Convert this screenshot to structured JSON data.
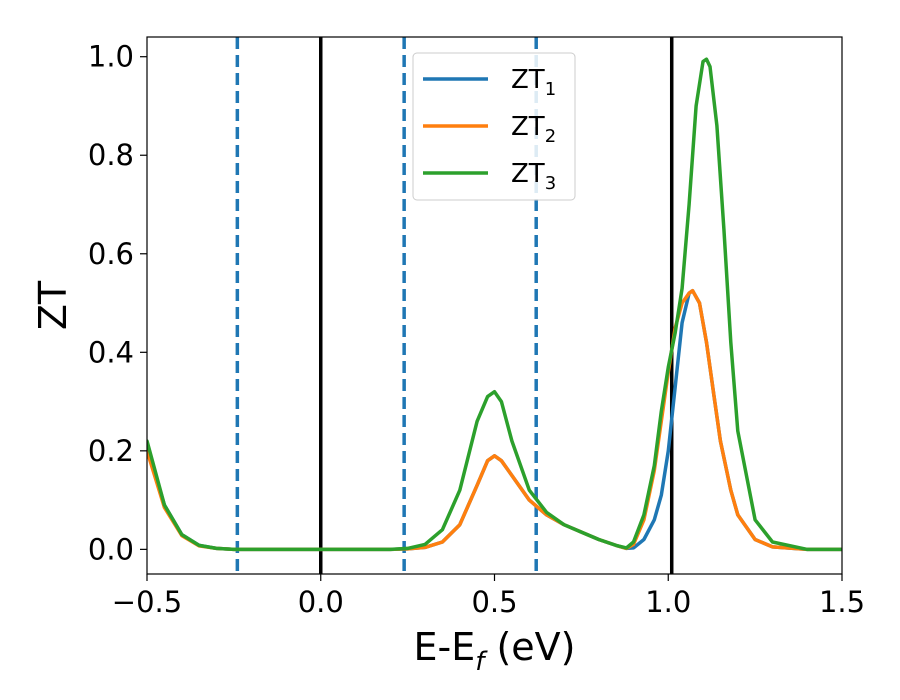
{
  "chart_data": {
    "type": "line",
    "xlabel": "E-E_f (eV)",
    "xlabel_main": "E-E",
    "xlabel_sub": "f",
    "xlabel_rest": " (eV)",
    "ylabel": "ZT",
    "xlim": [
      -0.5,
      1.5
    ],
    "ylim": [
      -0.05,
      1.04
    ],
    "grid": false,
    "legend_placement": "upper-center",
    "x_ticks": [
      -0.5,
      0.0,
      0.5,
      1.0,
      1.5
    ],
    "x_tick_labels": [
      "−0.5",
      "0.0",
      "0.5",
      "1.0",
      "1.5"
    ],
    "y_ticks": [
      0.0,
      0.2,
      0.4,
      0.6,
      0.8,
      1.0
    ],
    "y_tick_labels": [
      "0.0",
      "0.2",
      "0.4",
      "0.6",
      "0.8",
      "1.0"
    ],
    "vertical_lines": [
      {
        "x": -0.24,
        "style": "dashed",
        "color": "#1f77b4"
      },
      {
        "x": 0.0,
        "style": "solid",
        "color": "#000000"
      },
      {
        "x": 0.24,
        "style": "dashed",
        "color": "#1f77b4"
      },
      {
        "x": 0.62,
        "style": "dashed",
        "color": "#1f77b4"
      },
      {
        "x": 1.01,
        "style": "solid",
        "color": "#000000"
      }
    ],
    "series": [
      {
        "name": "ZT_1",
        "name_main": "ZT",
        "name_sub": "1",
        "color": "#1f77b4",
        "x": [
          -0.5,
          -0.45,
          -0.4,
          -0.35,
          -0.3,
          -0.25,
          -0.2,
          -0.1,
          0.0,
          0.1,
          0.2,
          0.25,
          0.3,
          0.35,
          0.4,
          0.45,
          0.48,
          0.5,
          0.52,
          0.55,
          0.6,
          0.65,
          0.7,
          0.75,
          0.8,
          0.85,
          0.88,
          0.9,
          0.93,
          0.96,
          0.98,
          1.0,
          1.02,
          1.04,
          1.06,
          1.07,
          1.09,
          1.11,
          1.13,
          1.15,
          1.18,
          1.2,
          1.25,
          1.3,
          1.4,
          1.5
        ],
        "y": [
          0.21,
          0.09,
          0.03,
          0.008,
          0.002,
          0.0,
          0.0,
          0.0,
          0.0,
          0.0,
          0.0,
          0.001,
          0.004,
          0.015,
          0.05,
          0.13,
          0.18,
          0.19,
          0.18,
          0.15,
          0.1,
          0.07,
          0.05,
          0.035,
          0.02,
          0.008,
          0.002,
          0.003,
          0.02,
          0.06,
          0.11,
          0.2,
          0.33,
          0.46,
          0.52,
          0.525,
          0.5,
          0.42,
          0.32,
          0.22,
          0.12,
          0.07,
          0.02,
          0.005,
          0.0,
          0.0
        ]
      },
      {
        "name": "ZT_2",
        "name_main": "ZT",
        "name_sub": "2",
        "color": "#ff7f0e",
        "x": [
          -0.5,
          -0.45,
          -0.4,
          -0.35,
          -0.3,
          -0.25,
          -0.2,
          -0.1,
          0.0,
          0.1,
          0.2,
          0.25,
          0.3,
          0.35,
          0.4,
          0.45,
          0.48,
          0.5,
          0.52,
          0.55,
          0.6,
          0.65,
          0.7,
          0.75,
          0.8,
          0.85,
          0.88,
          0.9,
          0.93,
          0.96,
          0.98,
          1.0,
          1.02,
          1.04,
          1.06,
          1.07,
          1.09,
          1.11,
          1.13,
          1.15,
          1.18,
          1.2,
          1.25,
          1.3,
          1.4,
          1.5
        ],
        "y": [
          0.2,
          0.085,
          0.028,
          0.007,
          0.002,
          0.0,
          0.0,
          0.0,
          0.0,
          0.0,
          0.0,
          0.001,
          0.004,
          0.015,
          0.05,
          0.13,
          0.18,
          0.19,
          0.18,
          0.15,
          0.1,
          0.07,
          0.05,
          0.035,
          0.02,
          0.008,
          0.002,
          0.01,
          0.06,
          0.16,
          0.26,
          0.36,
          0.45,
          0.5,
          0.52,
          0.525,
          0.5,
          0.42,
          0.32,
          0.22,
          0.12,
          0.07,
          0.02,
          0.005,
          0.0,
          0.0
        ]
      },
      {
        "name": "ZT_3",
        "name_main": "ZT",
        "name_sub": "3",
        "color": "#2ca02c",
        "x": [
          -0.5,
          -0.45,
          -0.4,
          -0.35,
          -0.3,
          -0.25,
          -0.2,
          -0.1,
          0.0,
          0.1,
          0.2,
          0.25,
          0.3,
          0.35,
          0.4,
          0.45,
          0.48,
          0.5,
          0.52,
          0.55,
          0.6,
          0.65,
          0.7,
          0.75,
          0.8,
          0.85,
          0.88,
          0.9,
          0.93,
          0.96,
          0.98,
          1.0,
          1.02,
          1.04,
          1.06,
          1.08,
          1.1,
          1.11,
          1.12,
          1.14,
          1.16,
          1.18,
          1.2,
          1.25,
          1.3,
          1.4,
          1.5
        ],
        "y": [
          0.22,
          0.09,
          0.03,
          0.008,
          0.002,
          0.0,
          0.0,
          0.0,
          0.0,
          0.0,
          0.0,
          0.002,
          0.01,
          0.04,
          0.12,
          0.26,
          0.31,
          0.32,
          0.3,
          0.22,
          0.12,
          0.075,
          0.05,
          0.035,
          0.02,
          0.008,
          0.003,
          0.015,
          0.07,
          0.17,
          0.28,
          0.37,
          0.44,
          0.53,
          0.7,
          0.9,
          0.99,
          0.995,
          0.98,
          0.86,
          0.65,
          0.42,
          0.24,
          0.06,
          0.015,
          0.0,
          0.0
        ]
      }
    ]
  }
}
